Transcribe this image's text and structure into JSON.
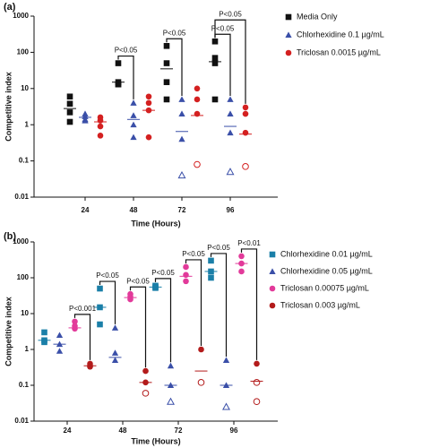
{
  "chart_data": [
    {
      "type": "dot",
      "panel_label": "(a)",
      "y_label": "Competitive index",
      "x_label": "Time (Hours)",
      "log_y": true,
      "categories": [
        "24",
        "48",
        "72",
        "96"
      ],
      "ylim": [
        0.01,
        1000
      ],
      "yticks": [
        0.01,
        0.1,
        1,
        10,
        100,
        1000
      ],
      "series": [
        {
          "name": "Media Only",
          "color": "#111111",
          "marker": "square",
          "values": [
            [
              6,
              3.8,
              2.2,
              1.2
            ],
            [
              50,
              15,
              13,
              13
            ],
            [
              150,
              50,
              15,
              5
            ],
            [
              200,
              70,
              50,
              5
            ]
          ],
          "medians": [
            2.8,
            15,
            35,
            55
          ],
          "open": [
            [],
            [],
            [],
            []
          ]
        },
        {
          "name": "Chlorhexidine 0.1 µg/mL",
          "color": "#3a4fa8",
          "marker": "triangle",
          "values": [
            [
              2,
              1.7,
              1.4,
              1.3
            ],
            [
              4,
              1.8,
              1,
              0.45
            ],
            [
              5,
              2,
              0.4,
              0.04
            ],
            [
              5,
              2,
              0.6,
              0.05
            ]
          ],
          "medians": [
            1.6,
            1.4,
            0.65,
            0.9
          ],
          "open": [
            [],
            [],
            [
              3
            ],
            [
              3
            ]
          ]
        },
        {
          "name": "Triclosan 0.0015 µg/mL",
          "color": "#d42020",
          "marker": "circle",
          "values": [
            [
              1.6,
              1.3,
              0.9,
              0.5
            ],
            [
              6,
              4,
              2.5,
              0.45
            ],
            [
              10,
              5,
              2,
              0.08
            ],
            [
              3,
              2,
              0.6,
              0.07
            ]
          ],
          "medians": [
            1.2,
            2.5,
            1.8,
            0.55
          ],
          "open": [
            [],
            [],
            [
              3
            ],
            [
              3
            ]
          ]
        }
      ],
      "annotations": [
        {
          "text": "P<0.05",
          "category": 1,
          "pair": [
            0,
            1
          ]
        },
        {
          "text": "P<0.05",
          "category": 2,
          "pair": [
            0,
            1
          ]
        },
        {
          "text": "P<0.05",
          "category": 3,
          "pair": [
            0,
            1
          ]
        },
        {
          "text": "P<0.05",
          "category": 3,
          "pair": [
            0,
            2
          ]
        }
      ]
    },
    {
      "type": "dot",
      "panel_label": "(b)",
      "y_label": "Competitive index",
      "x_label": "Time (Hours)",
      "log_y": true,
      "categories": [
        "24",
        "48",
        "72",
        "96"
      ],
      "ylim": [
        0.01,
        1000
      ],
      "yticks": [
        0.01,
        0.1,
        1,
        10,
        100,
        1000
      ],
      "series": [
        {
          "name": "Chlorhexidine 0.01 µg/mL",
          "color": "#1a7fa8",
          "marker": "square",
          "values": [
            [
              3,
              1.8,
              1.6
            ],
            [
              50,
              15,
              5
            ],
            [
              60,
              55,
              52
            ],
            [
              300,
              150,
              100
            ]
          ],
          "medians": [
            1.8,
            15,
            55,
            150
          ],
          "open": [
            [],
            [],
            [],
            []
          ]
        },
        {
          "name": "Chlorhexidine 0.05 µg/mL",
          "color": "#3a4fa8",
          "marker": "triangle",
          "values": [
            [
              2.5,
              1.4,
              0.9
            ],
            [
              4,
              0.8,
              0.5
            ],
            [
              0.35,
              0.1,
              0.035
            ],
            [
              0.5,
              0.1,
              0.025
            ]
          ],
          "medians": [
            1.4,
            0.6,
            0.1,
            0.1
          ],
          "open": [
            [],
            [],
            [
              2
            ],
            [
              2
            ]
          ]
        },
        {
          "name": "Triclosan 0.00075 µg/mL",
          "color": "#e23a9a",
          "marker": "circle",
          "values": [
            [
              6,
              4.5,
              3.8
            ],
            [
              35,
              30,
              25
            ],
            [
              200,
              120,
              80
            ],
            [
              400,
              250,
              150
            ]
          ],
          "medians": [
            4,
            28,
            110,
            250
          ],
          "open": [
            [],
            [],
            [],
            []
          ]
        },
        {
          "name": "Triclosan 0.003 µg/mL",
          "color": "#b31b1b",
          "marker": "circle",
          "values": [
            [
              0.4,
              0.35,
              0.33
            ],
            [
              0.25,
              0.12,
              0.06
            ],
            [
              1,
              0.12,
              0.12
            ],
            [
              0.4,
              0.12,
              0.035
            ]
          ],
          "medians": [
            0.35,
            0.12,
            0.25,
            0.13
          ],
          "open": [
            [],
            [
              2
            ],
            [
              2
            ],
            [
              1,
              2
            ]
          ]
        }
      ],
      "annotations": [
        {
          "text": "P<0.001",
          "category": 0,
          "pair": [
            2,
            3
          ]
        },
        {
          "text": "P<0.05",
          "category": 1,
          "pair": [
            0,
            1
          ]
        },
        {
          "text": "P<0.05",
          "category": 1,
          "pair": [
            2,
            3
          ]
        },
        {
          "text": "P<0.05",
          "category": 2,
          "pair": [
            0,
            1
          ]
        },
        {
          "text": "P<0.05",
          "category": 2,
          "pair": [
            2,
            3
          ]
        },
        {
          "text": "P<0.05",
          "category": 3,
          "pair": [
            0,
            1
          ]
        },
        {
          "text": "P<0.01",
          "category": 3,
          "pair": [
            2,
            3
          ]
        }
      ]
    }
  ]
}
